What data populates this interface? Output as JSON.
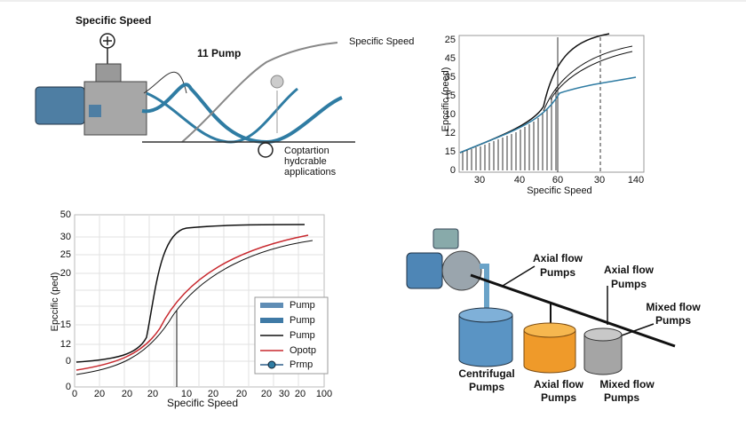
{
  "top_left": {
    "title": "Specific Speed",
    "pump_label": "11 Pump",
    "right_label": "Specific Speed",
    "note": [
      "Coptartion",
      "hydcrable",
      "applications"
    ]
  },
  "top_right": {
    "y_label": "Epccific (peed)",
    "x_label": "Specific Speed",
    "y_ticks": [
      "25",
      "45",
      "35",
      "15",
      "10",
      "12",
      "15",
      "0"
    ],
    "x_ticks": [
      "30",
      "40",
      "60",
      "30",
      "140"
    ]
  },
  "bottom_left": {
    "y_label": "Epccific (ped)",
    "x_label": "Specific Speed",
    "y_ticks": [
      "50",
      "30",
      "25",
      "20",
      "15",
      "12",
      "0",
      "0"
    ],
    "x_ticks": [
      "0",
      "20",
      "20",
      "20",
      "10",
      "20",
      "20",
      "20",
      "30",
      "20",
      "100"
    ],
    "legend": [
      "Pump",
      "Pump",
      "Pump",
      "Opotp",
      "Prmp"
    ]
  },
  "bottom_right": {
    "labels": [
      "Axial flow",
      "Pumps",
      "Axial flow",
      "Pumps",
      "Mixed flow",
      "Pumps",
      "Centrifugal",
      "Pumps",
      "Axial flow",
      "Pumps",
      "Mixed flow",
      "Pumps"
    ]
  }
}
